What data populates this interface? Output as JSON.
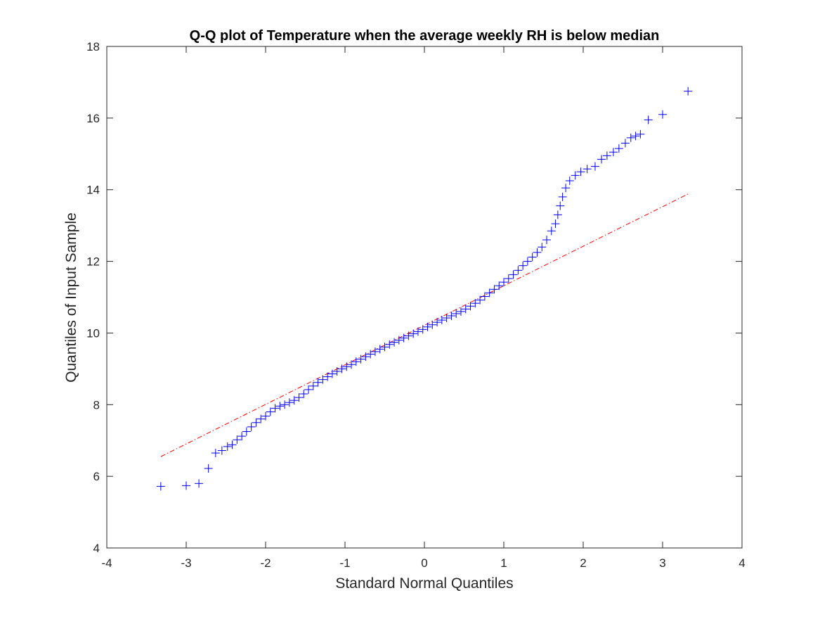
{
  "chart_data": {
    "type": "scatter",
    "title": "Q-Q plot of Temperature when the average weekly RH is below median",
    "xlabel": "Standard Normal Quantiles",
    "ylabel": "Quantiles of Input Sample",
    "xlim": [
      -4,
      4
    ],
    "ylim": [
      4,
      18
    ],
    "xticks": [
      -4,
      -3,
      -2,
      -1,
      0,
      1,
      2,
      3,
      4
    ],
    "yticks": [
      4,
      6,
      8,
      10,
      12,
      14,
      16,
      18
    ],
    "x_tick_labels": [
      "-4",
      "-3",
      "-2",
      "-1",
      "0",
      "1",
      "2",
      "3",
      "4"
    ],
    "y_tick_labels": [
      "4",
      "6",
      "8",
      "10",
      "12",
      "14",
      "16",
      "18"
    ],
    "grid": false,
    "marker": "+",
    "marker_color": "#0000ff",
    "reference_line": {
      "style": "dash-dot",
      "color": "#ff0000",
      "x": [
        -3.32,
        3.32
      ],
      "y": [
        6.55,
        13.88
      ]
    },
    "series": [
      {
        "points": [
          [
            -3.32,
            5.72
          ],
          [
            -3.0,
            5.74
          ],
          [
            -2.84,
            5.8
          ],
          [
            -2.72,
            6.22
          ],
          [
            -2.63,
            6.65
          ],
          [
            -2.55,
            6.72
          ],
          [
            -2.48,
            6.83
          ],
          [
            -2.42,
            6.88
          ],
          [
            -2.36,
            7.02
          ],
          [
            -2.3,
            7.12
          ],
          [
            -2.24,
            7.25
          ],
          [
            -2.18,
            7.38
          ],
          [
            -2.12,
            7.5
          ],
          [
            -2.06,
            7.6
          ],
          [
            -2.0,
            7.68
          ],
          [
            -1.94,
            7.8
          ],
          [
            -1.88,
            7.9
          ],
          [
            -1.82,
            7.96
          ],
          [
            -1.76,
            8.0
          ],
          [
            -1.7,
            8.06
          ],
          [
            -1.64,
            8.12
          ],
          [
            -1.58,
            8.2
          ],
          [
            -1.52,
            8.3
          ],
          [
            -1.46,
            8.42
          ],
          [
            -1.4,
            8.52
          ],
          [
            -1.34,
            8.62
          ],
          [
            -1.28,
            8.7
          ],
          [
            -1.22,
            8.78
          ],
          [
            -1.16,
            8.86
          ],
          [
            -1.1,
            8.93
          ],
          [
            -1.04,
            9.0
          ],
          [
            -0.98,
            9.06
          ],
          [
            -0.92,
            9.12
          ],
          [
            -0.86,
            9.2
          ],
          [
            -0.8,
            9.27
          ],
          [
            -0.74,
            9.34
          ],
          [
            -0.68,
            9.41
          ],
          [
            -0.62,
            9.48
          ],
          [
            -0.56,
            9.55
          ],
          [
            -0.5,
            9.61
          ],
          [
            -0.44,
            9.68
          ],
          [
            -0.38,
            9.74
          ],
          [
            -0.32,
            9.8
          ],
          [
            -0.26,
            9.86
          ],
          [
            -0.2,
            9.92
          ],
          [
            -0.14,
            9.98
          ],
          [
            -0.08,
            10.04
          ],
          [
            -0.02,
            10.1
          ],
          [
            0.04,
            10.17
          ],
          [
            0.1,
            10.23
          ],
          [
            0.16,
            10.3
          ],
          [
            0.22,
            10.36
          ],
          [
            0.28,
            10.42
          ],
          [
            0.34,
            10.48
          ],
          [
            0.4,
            10.54
          ],
          [
            0.46,
            10.6
          ],
          [
            0.52,
            10.67
          ],
          [
            0.58,
            10.75
          ],
          [
            0.64,
            10.83
          ],
          [
            0.7,
            10.92
          ],
          [
            0.76,
            11.02
          ],
          [
            0.82,
            11.12
          ],
          [
            0.88,
            11.22
          ],
          [
            0.94,
            11.32
          ],
          [
            1.0,
            11.42
          ],
          [
            1.06,
            11.52
          ],
          [
            1.12,
            11.63
          ],
          [
            1.18,
            11.75
          ],
          [
            1.24,
            11.88
          ],
          [
            1.3,
            12.0
          ],
          [
            1.36,
            12.12
          ],
          [
            1.42,
            12.25
          ],
          [
            1.48,
            12.4
          ],
          [
            1.54,
            12.6
          ],
          [
            1.6,
            12.85
          ],
          [
            1.65,
            13.05
          ],
          [
            1.68,
            13.3
          ],
          [
            1.71,
            13.55
          ],
          [
            1.74,
            13.8
          ],
          [
            1.78,
            14.05
          ],
          [
            1.83,
            14.25
          ],
          [
            1.9,
            14.4
          ],
          [
            1.97,
            14.5
          ],
          [
            2.05,
            14.58
          ],
          [
            2.15,
            14.65
          ],
          [
            2.23,
            14.85
          ],
          [
            2.3,
            14.95
          ],
          [
            2.38,
            15.05
          ],
          [
            2.45,
            15.15
          ],
          [
            2.53,
            15.3
          ],
          [
            2.6,
            15.45
          ],
          [
            2.66,
            15.5
          ],
          [
            2.72,
            15.55
          ],
          [
            2.82,
            15.95
          ],
          [
            3.0,
            16.1
          ],
          [
            3.32,
            16.75
          ]
        ]
      }
    ]
  }
}
